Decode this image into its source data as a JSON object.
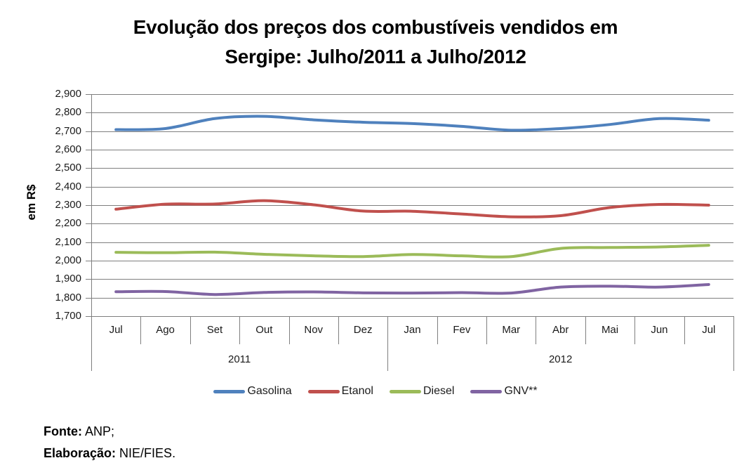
{
  "title": {
    "line1": "Evolução dos preços dos combustíveis vendidos em",
    "line2": "Sergipe: Julho/2011 a Julho/2012"
  },
  "chart_data": {
    "type": "line",
    "title": "Evolução dos preços dos combustíveis vendidos em Sergipe: Julho/2011 a Julho/2012",
    "xlabel": "",
    "ylabel": "em R$",
    "ylim": [
      1700,
      2900
    ],
    "grid": true,
    "legend_position": "bottom",
    "y_ticks": [
      {
        "value": 1700,
        "label": "1,700"
      },
      {
        "value": 1800,
        "label": "1,800"
      },
      {
        "value": 1900,
        "label": "1,900"
      },
      {
        "value": 2000,
        "label": "2,000"
      },
      {
        "value": 2100,
        "label": "2,100"
      },
      {
        "value": 2200,
        "label": "2,200"
      },
      {
        "value": 2300,
        "label": "2,300"
      },
      {
        "value": 2400,
        "label": "2,400"
      },
      {
        "value": 2500,
        "label": "2,500"
      },
      {
        "value": 2600,
        "label": "2,600"
      },
      {
        "value": 2700,
        "label": "2,700"
      },
      {
        "value": 2800,
        "label": "2,800"
      },
      {
        "value": 2900,
        "label": "2,900"
      }
    ],
    "categories": [
      "Jul",
      "Ago",
      "Set",
      "Out",
      "Nov",
      "Dez",
      "Jan",
      "Fev",
      "Mar",
      "Abr",
      "Mai",
      "Jun",
      "Jul"
    ],
    "year_groups": [
      {
        "label": "2011",
        "span": 6
      },
      {
        "label": "2012",
        "span": 7
      }
    ],
    "series": [
      {
        "name": "Gasolina",
        "color": "#4F81BD",
        "values": [
          2708,
          2714,
          2768,
          2780,
          2761,
          2748,
          2741,
          2726,
          2705,
          2714,
          2736,
          2768,
          2759
        ]
      },
      {
        "name": "Etanol",
        "color": "#C0504D",
        "values": [
          2278,
          2305,
          2306,
          2324,
          2302,
          2268,
          2267,
          2252,
          2237,
          2243,
          2287,
          2304,
          2300
        ]
      },
      {
        "name": "Diesel",
        "color": "#9BBB59",
        "values": [
          2045,
          2043,
          2046,
          2034,
          2026,
          2022,
          2033,
          2026,
          2022,
          2066,
          2071,
          2074,
          2083
        ]
      },
      {
        "name": "GNV**",
        "color": "#8064A2",
        "values": [
          1832,
          1833,
          1817,
          1828,
          1831,
          1826,
          1825,
          1827,
          1825,
          1857,
          1862,
          1857,
          1871
        ]
      }
    ]
  },
  "footer": {
    "source_label": "Fonte:",
    "source_value": " ANP;",
    "elaboration_label": "Elaboração:",
    "elaboration_value": " NIE/FIES."
  },
  "colors": {
    "gridline": "#7f7f7f",
    "axis": "#7f7f7f",
    "text": "#1a1a1a",
    "background": "#ffffff"
  }
}
